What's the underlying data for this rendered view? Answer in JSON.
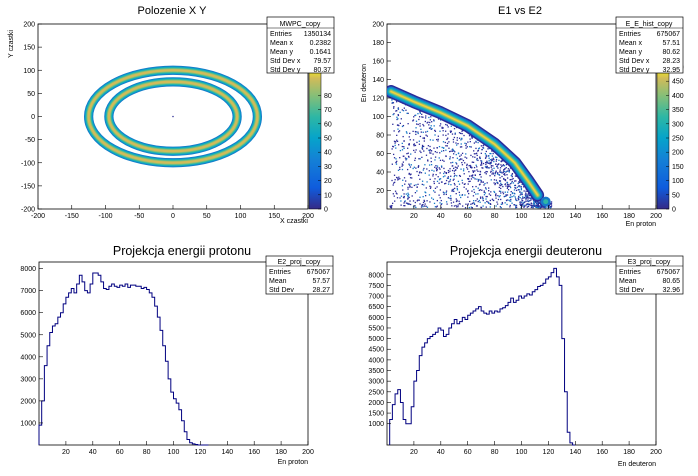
{
  "chart_data": [
    {
      "type": "heatmap",
      "title": "Polozenie X Y",
      "xlabel": "X czastki",
      "ylabel": "Y czastki",
      "xlim": [
        -200,
        200
      ],
      "ylim": [
        -200,
        200
      ],
      "xticks": [
        -200,
        -150,
        -100,
        -50,
        0,
        50,
        100,
        150,
        200
      ],
      "yticks": [
        -200,
        -150,
        -100,
        -50,
        0,
        50,
        100,
        150,
        200
      ],
      "zlim": [
        0,
        100
      ],
      "zticks": [
        0,
        10,
        20,
        30,
        40,
        50,
        60,
        70,
        80
      ],
      "rings": [
        {
          "rx": 125,
          "ry": 100,
          "width": 20,
          "max": 70
        },
        {
          "rx": 95,
          "ry": 75,
          "width": 20,
          "max": 85
        }
      ],
      "stats": {
        "name": "MWPC_copy",
        "rows": [
          [
            "Entries",
            "1350134"
          ],
          [
            "Mean x",
            "0.2382"
          ],
          [
            "Mean y",
            "0.1641"
          ],
          [
            "Std Dev x",
            "79.57"
          ],
          [
            "Std Dev y",
            "80.37"
          ]
        ]
      }
    },
    {
      "type": "heatmap",
      "title": "E1 vs E2",
      "xlabel": "En proton",
      "ylabel": "En deuteron",
      "xlim": [
        0,
        200
      ],
      "ylim": [
        0,
        200
      ],
      "xticks": [
        20,
        40,
        60,
        80,
        100,
        120,
        140,
        160,
        180,
        200
      ],
      "yticks": [
        20,
        40,
        60,
        80,
        100,
        120,
        140,
        160,
        180,
        200
      ],
      "zticks": [
        0,
        50,
        100,
        150,
        200,
        250,
        300,
        350,
        400,
        450,
        500
      ],
      "band": [
        [
          3,
          127
        ],
        [
          20,
          116
        ],
        [
          40,
          104
        ],
        [
          60,
          90
        ],
        [
          80,
          70
        ],
        [
          95,
          50
        ],
        [
          105,
          30
        ],
        [
          112,
          15
        ]
      ],
      "stats": {
        "name": "E_E_hist_copy",
        "rows": [
          [
            "Entries",
            "675067"
          ],
          [
            "Mean x",
            "57.51"
          ],
          [
            "Mean y",
            "80.62"
          ],
          [
            "Std Dev x",
            "28.23"
          ],
          [
            "Std Dev y",
            "32.95"
          ]
        ]
      }
    },
    {
      "type": "line",
      "title": "Projekcja energii protonu",
      "xlabel": "En proton",
      "ylabel": "",
      "xlim": [
        0,
        200
      ],
      "ylim": [
        0,
        8300
      ],
      "xticks": [
        20,
        40,
        60,
        80,
        100,
        120,
        140,
        160,
        180,
        200
      ],
      "yticks": [
        1000,
        2000,
        3000,
        4000,
        5000,
        6000,
        7000,
        8000
      ],
      "x": [
        0,
        2,
        4,
        6,
        8,
        10,
        12,
        14,
        16,
        18,
        20,
        22,
        24,
        26,
        28,
        30,
        32,
        34,
        36,
        38,
        40,
        42,
        44,
        46,
        48,
        50,
        52,
        54,
        56,
        58,
        60,
        62,
        64,
        66,
        68,
        70,
        72,
        74,
        76,
        78,
        80,
        82,
        84,
        86,
        88,
        90,
        92,
        94,
        96,
        98,
        100,
        102,
        104,
        106,
        108,
        110,
        112,
        114,
        116,
        118,
        120,
        122,
        124
      ],
      "values": [
        900,
        2000,
        3600,
        4500,
        5100,
        5400,
        5500,
        5800,
        6000,
        6400,
        6700,
        6900,
        7100,
        6900,
        7300,
        7700,
        7400,
        7000,
        6900,
        7300,
        7800,
        7800,
        7700,
        7400,
        7100,
        7050,
        7200,
        7300,
        7200,
        7150,
        7250,
        7200,
        7300,
        7150,
        7250,
        7250,
        7200,
        7200,
        7100,
        7150,
        7050,
        6900,
        6700,
        6300,
        5800,
        5200,
        4500,
        3800,
        3000,
        2400,
        2100,
        1900,
        1600,
        1100,
        600,
        250,
        100,
        50,
        20,
        0,
        0,
        0,
        0
      ],
      "stats": {
        "name": "E2_proj_copy",
        "rows": [
          [
            "Entries",
            "675067"
          ],
          [
            "Mean",
            "57.57"
          ],
          [
            "Std Dev",
            "28.27"
          ]
        ]
      }
    },
    {
      "type": "line",
      "title": "Projekcja energii deuteronu",
      "xlabel": "En deuteron",
      "ylabel": "",
      "xlim": [
        0,
        200
      ],
      "ylim": [
        0,
        8600
      ],
      "xticks": [
        20,
        40,
        60,
        80,
        100,
        120,
        140,
        160,
        180,
        200
      ],
      "yticks": [
        1000,
        1500,
        2000,
        2500,
        3000,
        3500,
        4000,
        4500,
        5000,
        5500,
        6000,
        6500,
        7000,
        7500,
        8000
      ],
      "x": [
        2,
        4,
        6,
        8,
        10,
        12,
        14,
        16,
        18,
        20,
        22,
        24,
        26,
        28,
        30,
        32,
        34,
        36,
        38,
        40,
        42,
        44,
        46,
        48,
        50,
        52,
        54,
        56,
        58,
        60,
        62,
        64,
        66,
        68,
        70,
        72,
        74,
        76,
        78,
        80,
        82,
        84,
        86,
        88,
        90,
        92,
        94,
        96,
        98,
        100,
        102,
        104,
        106,
        108,
        110,
        112,
        114,
        116,
        118,
        120,
        122,
        124,
        126,
        128,
        130,
        132,
        134,
        136,
        138
      ],
      "values": [
        1200,
        1900,
        2400,
        2600,
        2000,
        1200,
        1000,
        1000,
        1800,
        3000,
        3500,
        4200,
        4600,
        4800,
        5000,
        5100,
        5200,
        5300,
        5500,
        5400,
        5100,
        5200,
        5500,
        5700,
        5900,
        5700,
        5800,
        6000,
        5900,
        6100,
        6200,
        6300,
        6400,
        6500,
        6300,
        6200,
        6150,
        6300,
        6200,
        6300,
        6250,
        6400,
        6450,
        6550,
        6700,
        6900,
        6700,
        6800,
        7000,
        6900,
        7000,
        7100,
        7050,
        7200,
        7300,
        7450,
        7500,
        7600,
        7800,
        7900,
        8100,
        8300,
        7900,
        7500,
        5000,
        2500,
        600,
        100,
        0
      ],
      "stats": {
        "name": "E3_proj_copy",
        "rows": [
          [
            "Entries",
            "675067"
          ],
          [
            "Mean",
            "80.65"
          ],
          [
            "Std Dev",
            "32.96"
          ]
        ]
      }
    }
  ]
}
